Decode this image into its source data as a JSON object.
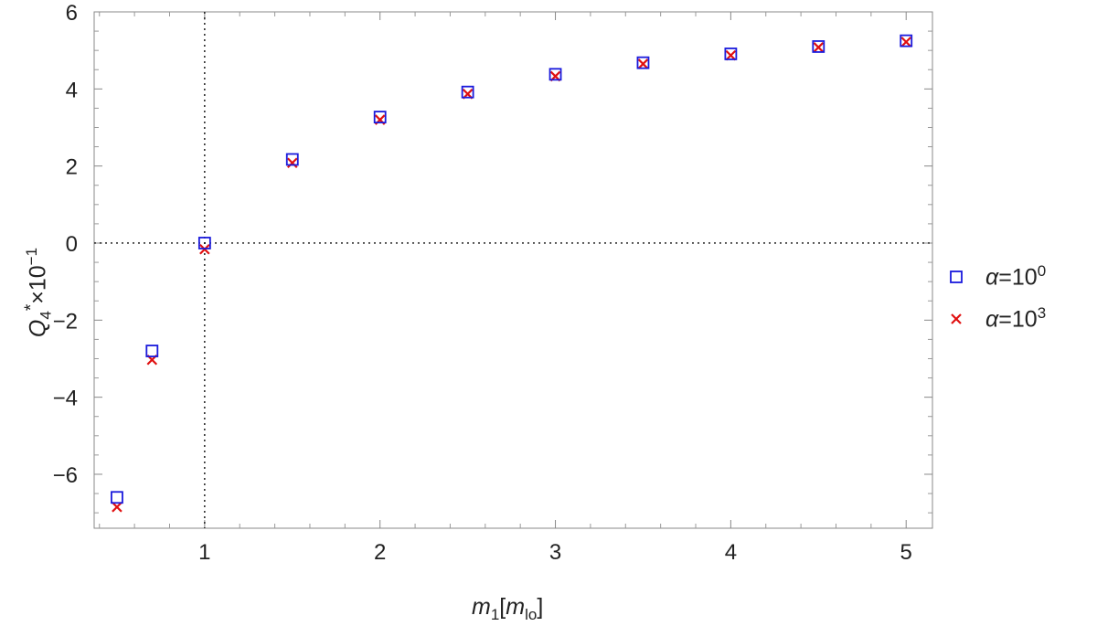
{
  "chart_data": {
    "type": "scatter",
    "xlim": [
      0.37,
      5.15
    ],
    "ylim": [
      -7.4,
      6
    ],
    "x_ticks": [
      1,
      2,
      3,
      4,
      5
    ],
    "y_ticks": [
      -6,
      -4,
      -2,
      0,
      2,
      4,
      6
    ],
    "x_tick_labels": [
      "1",
      "2",
      "3",
      "4",
      "5"
    ],
    "y_tick_labels": [
      "−6",
      "−4",
      "−2",
      "0",
      "2",
      "4",
      "6"
    ],
    "xlabel": {
      "main": "m",
      "sub": "1",
      "bracket_open": "[",
      "inner": "m",
      "inner_sub": "lo",
      "bracket_close": "]"
    },
    "ylabel": {
      "main": "Q",
      "sub": "4",
      "sup_star": "*",
      "times": "×10",
      "exp": "−1"
    },
    "reference_lines": {
      "x": 1,
      "y": 0,
      "style": "dotted"
    },
    "grid": false,
    "legend_position": "right",
    "series": [
      {
        "name": "α=10^0",
        "label_symbol": "α",
        "label_base": "=10",
        "label_exp": "0",
        "marker": "square",
        "color": "#1a1adc",
        "x": [
          0.5,
          0.7,
          1.0,
          1.5,
          2.0,
          2.5,
          3.0,
          3.5,
          4.0,
          4.5,
          5.0
        ],
        "y": [
          -6.6,
          -2.8,
          0.0,
          2.17,
          3.27,
          3.92,
          4.38,
          4.68,
          4.91,
          5.1,
          5.25
        ]
      },
      {
        "name": "α=10^3",
        "label_symbol": "α",
        "label_base": "=10",
        "label_exp": "3",
        "marker": "x",
        "color": "#e01010",
        "x": [
          0.5,
          0.7,
          1.0,
          1.5,
          2.0,
          2.5,
          3.0,
          3.5,
          4.0,
          4.5,
          5.0
        ],
        "y": [
          -6.85,
          -3.03,
          -0.16,
          2.08,
          3.2,
          3.87,
          4.33,
          4.65,
          4.87,
          5.08,
          5.22
        ]
      }
    ]
  }
}
